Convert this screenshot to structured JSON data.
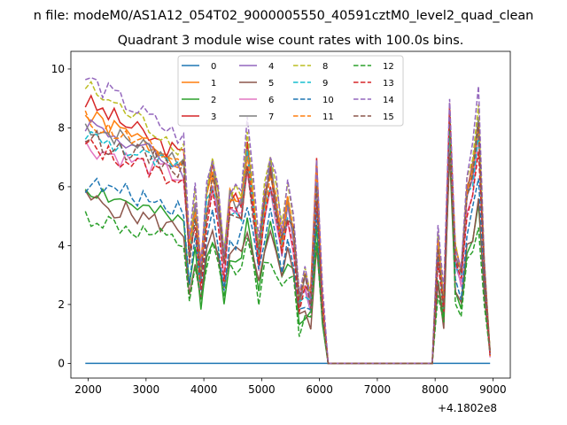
{
  "figure": {
    "suptitle": "n file: modeM0/AS1A12_054T02_9000005550_40591cztM0_level2_quad_clean",
    "title": "Quadrant 3 module wise count rates with 100.0s bins.",
    "offset_label": "+4.1802e8"
  },
  "chart_data": {
    "type": "line",
    "title": "Quadrant 3 module wise count rates with 100.0s bins.",
    "xlabel": "",
    "ylabel": "",
    "x_offset_text": "+4.1802e8",
    "xlim": [
      1700,
      9300
    ],
    "ylim": [
      -0.5,
      10.6
    ],
    "xticks": [
      2000,
      3000,
      4000,
      5000,
      6000,
      7000,
      8000,
      9000
    ],
    "yticks": [
      0,
      2,
      4,
      6,
      8,
      10
    ],
    "grid": false,
    "legend_placement": "upper center, 4 columns",
    "x_active_1": [
      1950,
      2050,
      2150,
      2250,
      2350,
      2450,
      2550,
      2650,
      2750,
      2850,
      2950,
      3050,
      3150,
      3250,
      3350,
      3450,
      3550,
      3650,
      3750,
      3850,
      3950,
      4050,
      4150,
      4250,
      4350,
      4450,
      4550,
      4650,
      4750,
      4850,
      4950,
      5050,
      5150,
      5250,
      5350,
      5450,
      5550,
      5650,
      5750,
      5850,
      5950,
      6050,
      6150
    ],
    "x_gap": [
      6250,
      7950
    ],
    "x_active_2": [
      8050,
      8150,
      8250,
      8350,
      8450,
      8550,
      8650,
      8750,
      8850,
      8950
    ],
    "series": [
      {
        "name": "0",
        "color": "#1f77b4",
        "dash": "solid",
        "base": 0,
        "shape": "flat"
      },
      {
        "name": "1",
        "color": "#ff7f0e",
        "dash": "solid",
        "base": 8.4,
        "end": 6.9,
        "seed": 1
      },
      {
        "name": "2",
        "color": "#2ca02c",
        "dash": "solid",
        "base": 6.0,
        "end": 4.7,
        "seed": 2
      },
      {
        "name": "3",
        "color": "#d62728",
        "dash": "solid",
        "base": 8.9,
        "end": 7.0,
        "seed": 3
      },
      {
        "name": "4",
        "color": "#9467bd",
        "dash": "solid",
        "base": 8.2,
        "end": 6.6,
        "seed": 4
      },
      {
        "name": "5",
        "color": "#8c564b",
        "dash": "solid",
        "base": 5.6,
        "end": 4.5,
        "seed": 5
      },
      {
        "name": "6",
        "color": "#e377c2",
        "dash": "solid",
        "base": 7.4,
        "end": 6.3,
        "seed": 6
      },
      {
        "name": "7",
        "color": "#7f7f7f",
        "dash": "solid",
        "base": 8.1,
        "end": 6.9,
        "seed": 7
      },
      {
        "name": "8",
        "color": "#bcbd22",
        "dash": "dashed",
        "base": 9.4,
        "end": 7.3,
        "seed": 8
      },
      {
        "name": "9",
        "color": "#17becf",
        "dash": "dashed",
        "base": 7.8,
        "end": 6.5,
        "seed": 9
      },
      {
        "name": "10",
        "color": "#1f77b4",
        "dash": "dashed",
        "base": 6.1,
        "end": 5.3,
        "seed": 10
      },
      {
        "name": "11",
        "color": "#ff7f0e",
        "dash": "dashed",
        "base": 8.3,
        "end": 6.8,
        "seed": 11
      },
      {
        "name": "12",
        "color": "#2ca02c",
        "dash": "dashed",
        "base": 5.0,
        "end": 4.0,
        "seed": 12
      },
      {
        "name": "13",
        "color": "#d62728",
        "dash": "dashed",
        "base": 7.4,
        "end": 6.2,
        "seed": 13
      },
      {
        "name": "14",
        "color": "#9467bd",
        "dash": "dashed",
        "base": 9.7,
        "end": 7.6,
        "seed": 14
      },
      {
        "name": "15",
        "color": "#8c564b",
        "dash": "dashed",
        "base": 7.7,
        "end": 6.6,
        "seed": 15
      }
    ]
  }
}
